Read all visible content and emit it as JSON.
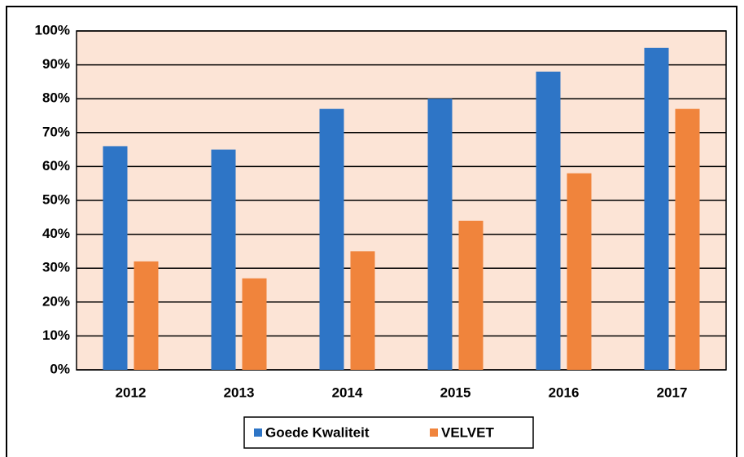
{
  "chart_data": {
    "type": "bar",
    "categories": [
      "2012",
      "2013",
      "2014",
      "2015",
      "2016",
      "2017"
    ],
    "series": [
      {
        "name": "Goede Kwaliteit",
        "color": "#2e75c6",
        "values": [
          66,
          65,
          77,
          80,
          88,
          95
        ]
      },
      {
        "name": "VELVET",
        "color": "#f0843c",
        "values": [
          32,
          27,
          35,
          44,
          58,
          77
        ]
      }
    ],
    "ylim": [
      0,
      100
    ],
    "yticks": [
      {
        "value": 0,
        "label": "0%"
      },
      {
        "value": 10,
        "label": "10%"
      },
      {
        "value": 20,
        "label": "20%"
      },
      {
        "value": 30,
        "label": "30%"
      },
      {
        "value": 40,
        "label": "40%"
      },
      {
        "value": 50,
        "label": "50%"
      },
      {
        "value": 60,
        "label": "60%"
      },
      {
        "value": 70,
        "label": "70%"
      },
      {
        "value": 80,
        "label": "80%"
      },
      {
        "value": 90,
        "label": "90%"
      },
      {
        "value": 100,
        "label": "100%"
      }
    ],
    "grid": true,
    "legend": "bottom"
  }
}
